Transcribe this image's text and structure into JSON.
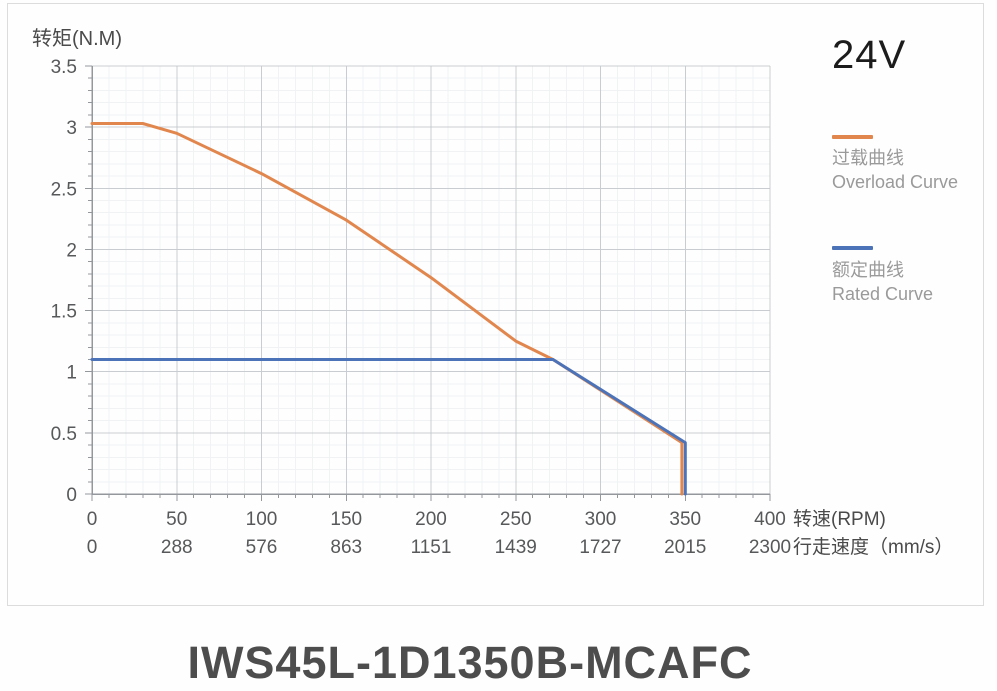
{
  "page": {
    "voltage_label": "24V",
    "model_title": "IWS45L-1D1350B-MCAFC"
  },
  "chart_data": {
    "type": "line",
    "grid": true,
    "legend_position": "right",
    "y_axis": {
      "label": "转矩(N.M)",
      "min": 0,
      "max": 3.5,
      "major_step": 0.5,
      "minor_step": 0.1,
      "tick_labels": [
        "0",
        "0.5",
        "1",
        "1.5",
        "2",
        "2.5",
        "3",
        "3.5"
      ]
    },
    "x_axis": {
      "label": "转速(RPM)",
      "min": 0,
      "max": 400,
      "major_step": 50,
      "minor_step": 10,
      "tick_labels": [
        "0",
        "50",
        "100",
        "150",
        "200",
        "250",
        "300",
        "350",
        "400"
      ]
    },
    "x_axis_secondary": {
      "label": "行走速度（mm/s）",
      "tick_labels": [
        "0",
        "288",
        "576",
        "863",
        "1151",
        "1439",
        "1727",
        "2015",
        "2300"
      ]
    },
    "series": [
      {
        "id": "overload-curve",
        "name_zh": "过载曲线",
        "name_en": "Overload Curve",
        "color": "#E1874E",
        "points": [
          [
            0,
            3.03
          ],
          [
            30,
            3.03
          ],
          [
            50,
            2.95
          ],
          [
            100,
            2.62
          ],
          [
            150,
            2.24
          ],
          [
            200,
            1.77
          ],
          [
            250,
            1.25
          ],
          [
            272,
            1.1
          ],
          [
            348,
            0.42
          ],
          [
            348,
            0
          ]
        ]
      },
      {
        "id": "rated-curve",
        "name_zh": "额定曲线",
        "name_en": "Rated Curve",
        "color": "#4C73B8",
        "points": [
          [
            0,
            1.1
          ],
          [
            272,
            1.1
          ],
          [
            350,
            0.42
          ],
          [
            350,
            0
          ]
        ]
      }
    ],
    "style": {
      "axis_color": "#94989d",
      "grid_major_color": "#c9cdd1",
      "grid_minor_color": "#f0f2f4",
      "tick_label_color": "#57585a",
      "axis_title_color": "#4a4a4a"
    }
  }
}
